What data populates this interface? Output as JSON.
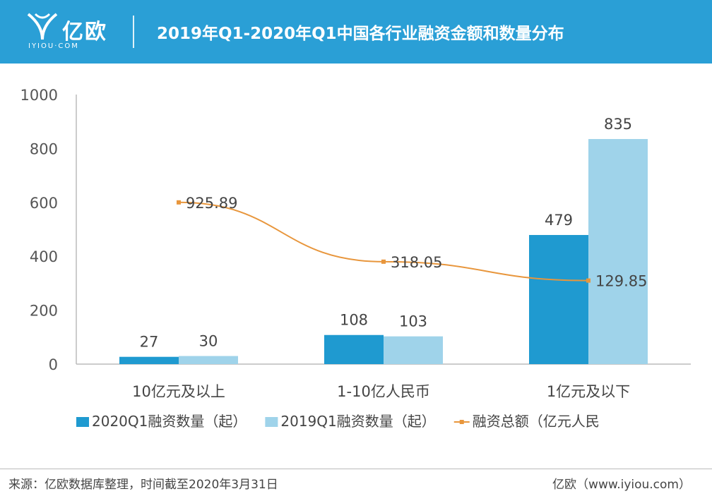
{
  "header": {
    "logo_name": "亿欧",
    "logo_url": "IYIOU·COM",
    "title": "2019年Q1-2020年Q1中国各行业融资金额和数量分布",
    "bg_color": "#2a9fd6"
  },
  "chart_data": {
    "type": "bar",
    "title": "2019年Q1-2020年Q1中国各行业融资金额和数量分布",
    "categories": [
      "10亿元及以上",
      "1-10亿人民币",
      "1亿元及以下"
    ],
    "ylim": [
      0,
      1000
    ],
    "yticks": [
      0,
      200,
      400,
      600,
      800,
      1000
    ],
    "series": [
      {
        "name": "2020Q1融资数量（起）",
        "kind": "bar",
        "color": "#1f9ad0",
        "values": [
          27,
          108,
          479
        ]
      },
      {
        "name": "2019Q1融资数量（起）",
        "kind": "bar",
        "color": "#9fd3ea",
        "values": [
          30,
          103,
          835
        ]
      },
      {
        "name": "融资总额（亿元人民",
        "kind": "line",
        "color": "#e8963c",
        "values": [
          925.89,
          318.05,
          129.85
        ],
        "plot_y": [
          600,
          380,
          310
        ]
      }
    ],
    "xlabel": "",
    "ylabel": ""
  },
  "footer": {
    "source": "来源：亿欧数据库整理，时间截至2020年3月31日",
    "site": "亿欧（www.iyiou.com）"
  }
}
